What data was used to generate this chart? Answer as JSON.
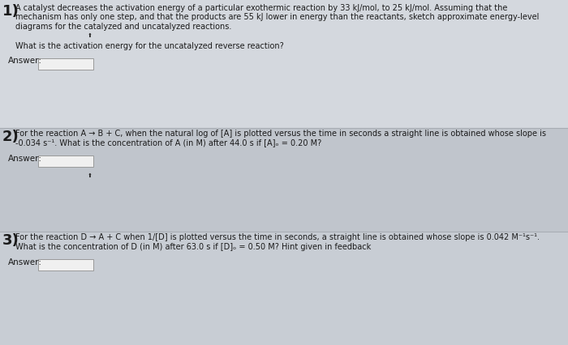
{
  "background_color": "#c8cdd4",
  "section1_bg": "#d4d8de",
  "section2_bg": "#c0c5cc",
  "section3_bg": "#c8cdd4",
  "text_color": "#1a1a1a",
  "answer_box_color": "#f0f0f0",
  "answer_box_border": "#999999",
  "section1": {
    "number": "1",
    "line1": "A catalyst decreases the activation energy of a particular exothermic reaction by 33 kJ/mol, to 25 kJ/mol. Assuming that the",
    "line2": "mechanism has only one step, and that the products are 55 kJ lower in energy than the reactants, sketch approximate energy-level",
    "line3": "diagrams for the catalyzed and uncatalyzed reactions.",
    "question": "What is the activation energy for the uncatalyzed reverse reaction?",
    "answer_label": "Answer:"
  },
  "section2": {
    "number": "2",
    "line1": "For the reaction A → B + C, when the natural log of [A] is plotted versus the time in seconds a straight line is obtained whose slope is",
    "line2": "-0.034 s⁻¹. What is the concentration of A (in M) after 44.0 s if [A]ₒ = 0.20 M?",
    "answer_label": "Answer:"
  },
  "section3": {
    "number": "3",
    "line1": "For the reaction D → A + C when 1/[D] is plotted versus the time in seconds, a straight line is obtained whose slope is 0.042 M⁻¹s⁻¹.",
    "line2": "What is the concentration of D (in M) after 63.0 s if [D]ₒ = 0.50 M? Hint given in feedback",
    "answer_label": "Answer:"
  },
  "figsize": [
    7.0,
    4.26
  ],
  "dpi": 100
}
